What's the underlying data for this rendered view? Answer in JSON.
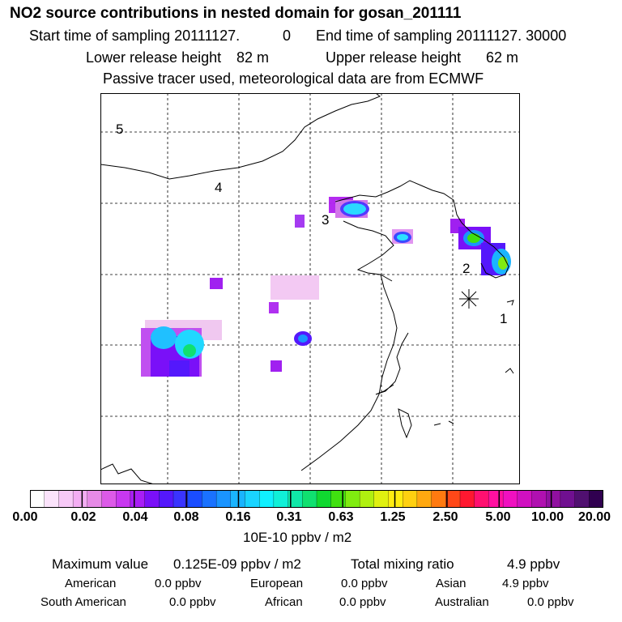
{
  "header": {
    "title": "NO2 source contributions in nested domain for gosan_201111",
    "start_label": "Start time of sampling 20111127.",
    "start_value": "0",
    "end_label": "End time of sampling 20111127. 30000",
    "lower_label": "Lower release height",
    "lower_value": "82 m",
    "upper_label": "Upper release height",
    "upper_value": "62 m",
    "tracer_note": "Passive tracer used, meteorological data are from ECMWF"
  },
  "map": {
    "region_labels": [
      "5",
      "4",
      "3",
      "2",
      "1"
    ],
    "receptor_marker": "receptor-asterisk"
  },
  "colorbar": {
    "tick_labels": [
      "0.00",
      "0.02",
      "0.04",
      "0.08",
      "0.16",
      "0.31",
      "0.63",
      "1.25",
      "2.50",
      "5.00",
      "10.00",
      "20.00"
    ],
    "unit": "10E-10 ppbv / m2",
    "colors": [
      "#ffffff",
      "#fbe3fb",
      "#f7c9f7",
      "#f3adf3",
      "#e68ae6",
      "#dc5ae8",
      "#c838f0",
      "#a81ef5",
      "#7a10f8",
      "#5418fc",
      "#3a34ff",
      "#1a4dff",
      "#1a72ff",
      "#1a94ff",
      "#1ab4ff",
      "#1ad4ff",
      "#10f0ff",
      "#10f0d8",
      "#10e8a8",
      "#10e070",
      "#10d830",
      "#40e010",
      "#80ec10",
      "#b0f010",
      "#e0f010",
      "#ffec10",
      "#ffd010",
      "#ffa810",
      "#ff7a10",
      "#ff4818",
      "#ff1830",
      "#ff1070",
      "#ff10a0",
      "#f010c0",
      "#d010c0",
      "#b010b0",
      "#9010a0",
      "#701090",
      "#501070",
      "#300050"
    ]
  },
  "summary": {
    "max_label": "Maximum value",
    "max_value": "0.125E-09 ppbv / m2",
    "total_label": "Total mixing ratio",
    "total_value": "4.9 ppbv",
    "sources": [
      {
        "name": "American",
        "value": "0.0 ppbv"
      },
      {
        "name": "European",
        "value": "0.0 ppbv"
      },
      {
        "name": "Asian",
        "value": "4.9 ppbv"
      },
      {
        "name": "South American",
        "value": "0.0 ppbv"
      },
      {
        "name": "African",
        "value": "0.0 ppbv"
      },
      {
        "name": "Australian",
        "value": "0.0 ppbv"
      }
    ]
  }
}
